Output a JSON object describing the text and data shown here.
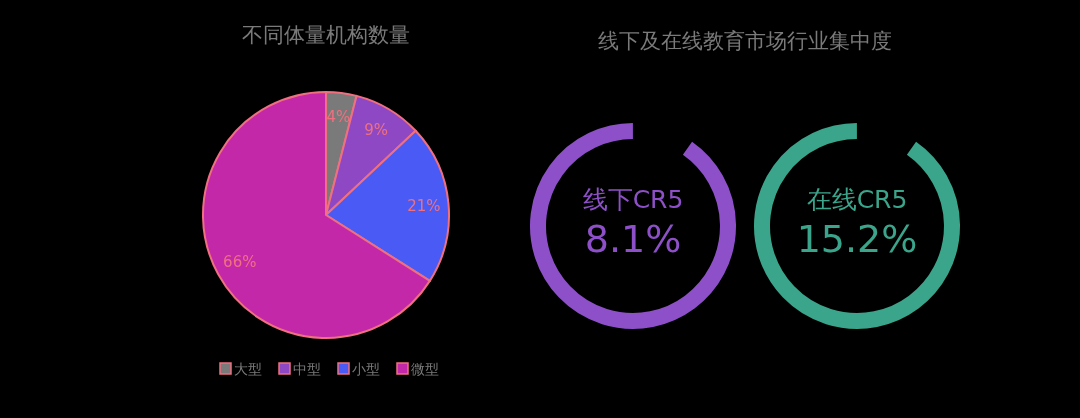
{
  "chart_data": [
    {
      "type": "pie",
      "title": "不同体量机构数量",
      "categories": [
        "大型",
        "中型",
        "小型",
        "微型"
      ],
      "values": [
        4,
        9,
        21,
        66
      ],
      "colors": [
        "#7a7a7a",
        "#8e48c4",
        "#4a5af5",
        "#c228a8"
      ],
      "value_labels": [
        "4%",
        "9%",
        "21%",
        "66%"
      ],
      "legend": "bottom"
    },
    {
      "type": "other",
      "title": "线下及在线教育市场行业集中度",
      "annotations": [
        "线下CR5",
        "8.1%",
        "在线CR5",
        "15.2%"
      ],
      "colors": [
        "#8e50c8",
        "#3aa58a"
      ]
    }
  ]
}
